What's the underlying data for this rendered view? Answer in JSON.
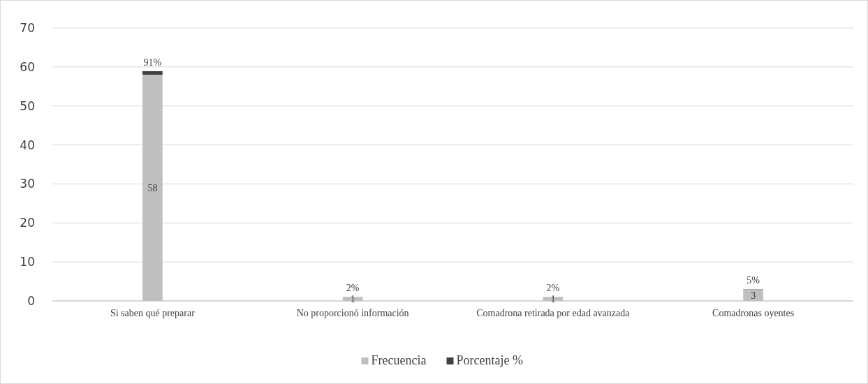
{
  "chart_data": {
    "type": "bar",
    "stacked": true,
    "categories": [
      "Si saben qué preparar",
      "No proporcionó información",
      "Comadrona retirada por edad avanzada",
      "Comadronas oyentes"
    ],
    "series": [
      {
        "name": "Frecuencia",
        "color": "#bfbfbf",
        "values": [
          58,
          1,
          1,
          3
        ],
        "value_labels": [
          "58",
          "1",
          "1",
          "3"
        ]
      },
      {
        "name": "Porcentaje %",
        "color": "#404040",
        "values": [
          0.91,
          0.02,
          0.02,
          0.05
        ],
        "value_labels": [
          "91%",
          "2%",
          "2%",
          "5%"
        ]
      }
    ],
    "ylim": [
      0,
      70
    ],
    "yticks": [
      0,
      10,
      20,
      30,
      40,
      50,
      60,
      70
    ],
    "grid": "y",
    "legend": "bottom"
  }
}
